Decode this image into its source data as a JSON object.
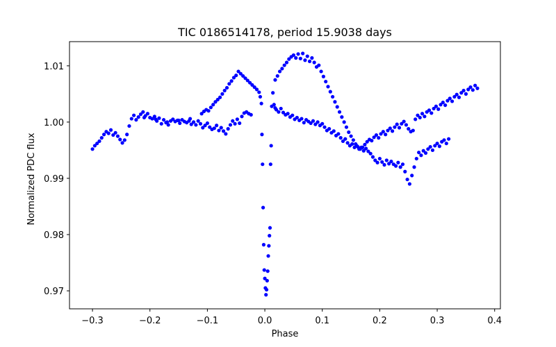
{
  "chart_data": {
    "type": "scatter",
    "title": "TIC 0186514178, period 15.9038 days",
    "xlabel": "Phase",
    "ylabel": "Normalized PDC flux",
    "xlim": [
      -0.34,
      0.41
    ],
    "ylim": [
      0.9668,
      1.0143
    ],
    "xticks": [
      -0.3,
      -0.2,
      -0.1,
      0.0,
      0.1,
      0.2,
      0.3,
      0.4
    ],
    "xtick_labels": [
      "−0.3",
      "−0.2",
      "−0.1",
      "0.0",
      "0.1",
      "0.2",
      "0.3",
      "0.4"
    ],
    "yticks": [
      0.97,
      0.98,
      0.99,
      1.0,
      1.01
    ],
    "ytick_labels": [
      "0.97",
      "0.98",
      "0.99",
      "1.00",
      "1.01"
    ],
    "marker_color": "#0000ff",
    "series": [
      {
        "name": "flux",
        "points": [
          [
            -0.3,
            0.9952
          ],
          [
            -0.296,
            0.9958
          ],
          [
            -0.292,
            0.9962
          ],
          [
            -0.288,
            0.9966
          ],
          [
            -0.284,
            0.9972
          ],
          [
            -0.28,
            0.9978
          ],
          [
            -0.276,
            0.9983
          ],
          [
            -0.272,
            0.998
          ],
          [
            -0.268,
            0.9986
          ],
          [
            -0.264,
            0.9977
          ],
          [
            -0.26,
            0.9981
          ],
          [
            -0.256,
            0.9975
          ],
          [
            -0.252,
            0.9969
          ],
          [
            -0.248,
            0.9963
          ],
          [
            -0.244,
            0.9968
          ],
          [
            -0.24,
            0.9978
          ],
          [
            -0.236,
            0.9993
          ],
          [
            -0.232,
            1.0006
          ],
          [
            -0.228,
            1.0012
          ],
          [
            -0.224,
            1.0004
          ],
          [
            -0.22,
            1.0009
          ],
          [
            -0.216,
            1.0014
          ],
          [
            -0.212,
            1.0018
          ],
          [
            -0.208,
            1.0011
          ],
          [
            -0.204,
            1.0015
          ],
          [
            -0.2,
            1.0008
          ],
          [
            -0.196,
            1.0006
          ],
          [
            -0.192,
            1.001
          ],
          [
            -0.188,
            1.0002
          ],
          [
            -0.184,
            1.0007
          ],
          [
            -0.18,
            0.9997
          ],
          [
            -0.176,
            1.0004
          ],
          [
            -0.172,
            0.9999
          ],
          [
            -0.168,
            0.9995
          ],
          [
            -0.164,
            1.0002
          ],
          [
            -0.16,
            1.0005
          ],
          [
            -0.156,
            1.0001
          ],
          [
            -0.152,
            1.0003
          ],
          [
            -0.148,
            0.9998
          ],
          [
            -0.144,
            1.0004
          ],
          [
            -0.14,
            1.0001
          ],
          [
            -0.136,
            0.9999
          ],
          [
            -0.132,
            1.0002
          ],
          [
            -0.128,
            0.9996
          ],
          [
            -0.124,
            1.0
          ],
          [
            -0.12,
            0.9995
          ],
          [
            -0.116,
            1.0002
          ],
          [
            -0.112,
            0.9997
          ],
          [
            -0.108,
            0.999
          ],
          [
            -0.104,
            0.9994
          ],
          [
            -0.1,
            0.9998
          ],
          [
            -0.096,
            0.9991
          ],
          [
            -0.092,
            0.9987
          ],
          [
            -0.088,
            0.9989
          ],
          [
            -0.084,
            0.9994
          ],
          [
            -0.08,
            0.9985
          ],
          [
            -0.076,
            0.999
          ],
          [
            -0.072,
            0.9984
          ],
          [
            -0.068,
            0.9979
          ],
          [
            -0.064,
            0.9988
          ],
          [
            -0.06,
            0.9995
          ],
          [
            -0.056,
            1.0002
          ],
          [
            -0.052,
            0.9997
          ],
          [
            -0.048,
            1.0005
          ],
          [
            -0.044,
            0.9998
          ],
          [
            -0.04,
            1.001
          ],
          [
            -0.036,
            1.0016
          ],
          [
            -0.032,
            1.0018
          ],
          [
            -0.028,
            1.0015
          ],
          [
            -0.024,
            1.0013
          ],
          [
            -0.21,
            1.0008
          ],
          [
            -0.19,
            1.0005
          ],
          [
            -0.17,
            1.0
          ],
          [
            -0.15,
            1.0003
          ],
          [
            -0.13,
            1.0006
          ],
          [
            -0.11,
            1.0015
          ],
          [
            -0.106,
            1.0019
          ],
          [
            -0.102,
            1.0022
          ],
          [
            -0.098,
            1.002
          ],
          [
            -0.094,
            1.0026
          ],
          [
            -0.09,
            1.0031
          ],
          [
            -0.086,
            1.0036
          ],
          [
            -0.082,
            1.004
          ],
          [
            -0.078,
            1.0044
          ],
          [
            -0.074,
            1.005
          ],
          [
            -0.07,
            1.0056
          ],
          [
            -0.066,
            1.0061
          ],
          [
            -0.062,
            1.0068
          ],
          [
            -0.058,
            1.0073
          ],
          [
            -0.054,
            1.0079
          ],
          [
            -0.05,
            1.0083
          ],
          [
            -0.046,
            1.009
          ],
          [
            -0.042,
            1.0086
          ],
          [
            -0.038,
            1.0082
          ],
          [
            -0.034,
            1.0078
          ],
          [
            -0.03,
            1.0074
          ],
          [
            -0.026,
            1.007
          ],
          [
            -0.022,
            1.0066
          ],
          [
            -0.018,
            1.0062
          ],
          [
            -0.014,
            1.0058
          ],
          [
            -0.01,
            1.0053
          ],
          [
            -0.008,
            1.0045
          ],
          [
            -0.006,
            1.0033
          ],
          [
            -0.005,
            0.9978
          ],
          [
            -0.004,
            0.9925
          ],
          [
            -0.003,
            0.9848
          ],
          [
            -0.002,
            0.9782
          ],
          [
            -0.001,
            0.9737
          ],
          [
            0.0,
            0.9722
          ],
          [
            0.001,
            0.9705
          ],
          [
            0.002,
            0.9693
          ],
          [
            0.003,
            0.9702
          ],
          [
            0.004,
            0.9718
          ],
          [
            0.005,
            0.9735
          ],
          [
            0.006,
            0.9762
          ],
          [
            0.007,
            0.978
          ],
          [
            0.008,
            0.9798
          ],
          [
            0.009,
            0.9812
          ],
          [
            0.01,
            0.9925
          ],
          [
            0.011,
            0.9958
          ],
          [
            0.012,
            1.0028
          ],
          [
            0.014,
            1.0052
          ],
          [
            0.016,
            1.0031
          ],
          [
            0.018,
            1.0025
          ],
          [
            0.02,
            1.0022
          ],
          [
            0.024,
            1.0018
          ],
          [
            0.028,
            1.0024
          ],
          [
            0.032,
            1.0017
          ],
          [
            0.036,
            1.0013
          ],
          [
            0.04,
            1.0015
          ],
          [
            0.044,
            1.0009
          ],
          [
            0.048,
            1.0012
          ],
          [
            0.052,
            1.0005
          ],
          [
            0.056,
            1.0008
          ],
          [
            0.06,
            1.0003
          ],
          [
            0.064,
            1.0006
          ],
          [
            0.068,
            0.9999
          ],
          [
            0.072,
            1.0004
          ],
          [
            0.076,
            1.0001
          ],
          [
            0.08,
            0.9998
          ],
          [
            0.084,
            1.0002
          ],
          [
            0.088,
            0.9996
          ],
          [
            0.092,
            1.0
          ],
          [
            0.096,
            0.9994
          ],
          [
            0.1,
            0.9997
          ],
          [
            0.104,
            0.9991
          ],
          [
            0.108,
            0.9985
          ],
          [
            0.112,
            0.9988
          ],
          [
            0.116,
            0.9981
          ],
          [
            0.12,
            0.9984
          ],
          [
            0.124,
            0.9976
          ],
          [
            0.128,
            0.9979
          ],
          [
            0.132,
            0.9972
          ],
          [
            0.136,
            0.9966
          ],
          [
            0.14,
            0.997
          ],
          [
            0.144,
            0.9963
          ],
          [
            0.148,
            0.9958
          ],
          [
            0.152,
            0.9961
          ],
          [
            0.156,
            0.9955
          ],
          [
            0.16,
            0.9958
          ],
          [
            0.164,
            0.9952
          ],
          [
            0.168,
            0.9955
          ],
          [
            0.172,
            0.9949
          ],
          [
            0.176,
            0.9953
          ],
          [
            0.18,
            0.9948
          ],
          [
            0.184,
            0.9944
          ],
          [
            0.188,
            0.9938
          ],
          [
            0.192,
            0.9932
          ],
          [
            0.196,
            0.9928
          ],
          [
            0.2,
            0.9935
          ],
          [
            0.204,
            0.9929
          ],
          [
            0.208,
            0.9924
          ],
          [
            0.212,
            0.9932
          ],
          [
            0.216,
            0.9926
          ],
          [
            0.22,
            0.993
          ],
          [
            0.224,
            0.9925
          ],
          [
            0.228,
            0.9922
          ],
          [
            0.232,
            0.9928
          ],
          [
            0.236,
            0.992
          ],
          [
            0.24,
            0.9925
          ],
          [
            0.018,
            1.0075
          ],
          [
            0.022,
            1.0082
          ],
          [
            0.026,
            1.009
          ],
          [
            0.03,
            1.0095
          ],
          [
            0.034,
            1.0101
          ],
          [
            0.038,
            1.0106
          ],
          [
            0.042,
            1.0112
          ],
          [
            0.046,
            1.0116
          ],
          [
            0.05,
            1.0119
          ],
          [
            0.054,
            1.0114
          ],
          [
            0.058,
            1.0121
          ],
          [
            0.062,
            1.0113
          ],
          [
            0.066,
            1.0122
          ],
          [
            0.07,
            1.011
          ],
          [
            0.074,
            1.0117
          ],
          [
            0.078,
            1.0108
          ],
          [
            0.082,
            1.0114
          ],
          [
            0.086,
            1.0106
          ],
          [
            0.09,
            1.0098
          ],
          [
            0.094,
            1.0101
          ],
          [
            0.098,
            1.009
          ],
          [
            0.102,
            1.0081
          ],
          [
            0.106,
            1.0072
          ],
          [
            0.11,
            1.0063
          ],
          [
            0.114,
            1.0054
          ],
          [
            0.118,
            1.0045
          ],
          [
            0.122,
            1.0036
          ],
          [
            0.126,
            1.0027
          ],
          [
            0.13,
            1.0018
          ],
          [
            0.134,
            1.0009
          ],
          [
            0.138,
            1.0
          ],
          [
            0.142,
            0.9991
          ],
          [
            0.146,
            0.9982
          ],
          [
            0.15,
            0.9975
          ],
          [
            0.154,
            0.9968
          ],
          [
            0.158,
            0.9961
          ],
          [
            0.162,
            0.9956
          ],
          [
            0.166,
            0.9952
          ],
          [
            0.17,
            0.9955
          ],
          [
            0.174,
            0.996
          ],
          [
            0.178,
            0.9965
          ],
          [
            0.182,
            0.9969
          ],
          [
            0.186,
            0.9967
          ],
          [
            0.19,
            0.9973
          ],
          [
            0.194,
            0.9977
          ],
          [
            0.198,
            0.9972
          ],
          [
            0.202,
            0.9979
          ],
          [
            0.206,
            0.9983
          ],
          [
            0.21,
            0.9978
          ],
          [
            0.214,
            0.9985
          ],
          [
            0.218,
            0.9989
          ],
          [
            0.222,
            0.9984
          ],
          [
            0.226,
            0.9991
          ],
          [
            0.23,
            0.9996
          ],
          [
            0.234,
            0.999
          ],
          [
            0.238,
            0.9997
          ],
          [
            0.242,
            1.0001
          ],
          [
            0.246,
            0.9995
          ],
          [
            0.25,
            0.9988
          ],
          [
            0.254,
            0.9983
          ],
          [
            0.244,
            0.9912
          ],
          [
            0.248,
            0.9898
          ],
          [
            0.252,
            0.989
          ],
          [
            0.256,
            0.9905
          ],
          [
            0.26,
            0.992
          ],
          [
            0.264,
            0.9935
          ],
          [
            0.268,
            0.9946
          ],
          [
            0.272,
            0.9941
          ],
          [
            0.276,
            0.9949
          ],
          [
            0.28,
            0.9945
          ],
          [
            0.284,
            0.9952
          ],
          [
            0.288,
            0.9956
          ],
          [
            0.292,
            0.995
          ],
          [
            0.296,
            0.9958
          ],
          [
            0.3,
            0.9962
          ],
          [
            0.304,
            0.9957
          ],
          [
            0.308,
            0.9965
          ],
          [
            0.312,
            0.9968
          ],
          [
            0.316,
            0.9962
          ],
          [
            0.32,
            0.997
          ],
          [
            0.258,
            0.9985
          ],
          [
            0.262,
            1.0005
          ],
          [
            0.266,
            1.0012
          ],
          [
            0.27,
            1.0008
          ],
          [
            0.274,
            1.0015
          ],
          [
            0.278,
            1.001
          ],
          [
            0.282,
            1.0018
          ],
          [
            0.286,
            1.0021
          ],
          [
            0.29,
            1.0016
          ],
          [
            0.294,
            1.0024
          ],
          [
            0.298,
            1.0028
          ],
          [
            0.302,
            1.0023
          ],
          [
            0.306,
            1.0031
          ],
          [
            0.31,
            1.0035
          ],
          [
            0.314,
            1.003
          ],
          [
            0.318,
            1.0038
          ],
          [
            0.322,
            1.0042
          ],
          [
            0.326,
            1.0037
          ],
          [
            0.33,
            1.0045
          ],
          [
            0.334,
            1.0049
          ],
          [
            0.338,
            1.0044
          ],
          [
            0.342,
            1.0052
          ],
          [
            0.346,
            1.0056
          ],
          [
            0.35,
            1.005
          ],
          [
            0.354,
            1.0058
          ],
          [
            0.358,
            1.0062
          ],
          [
            0.362,
            1.0057
          ],
          [
            0.366,
            1.0065
          ],
          [
            0.37,
            1.006
          ]
        ]
      }
    ]
  }
}
